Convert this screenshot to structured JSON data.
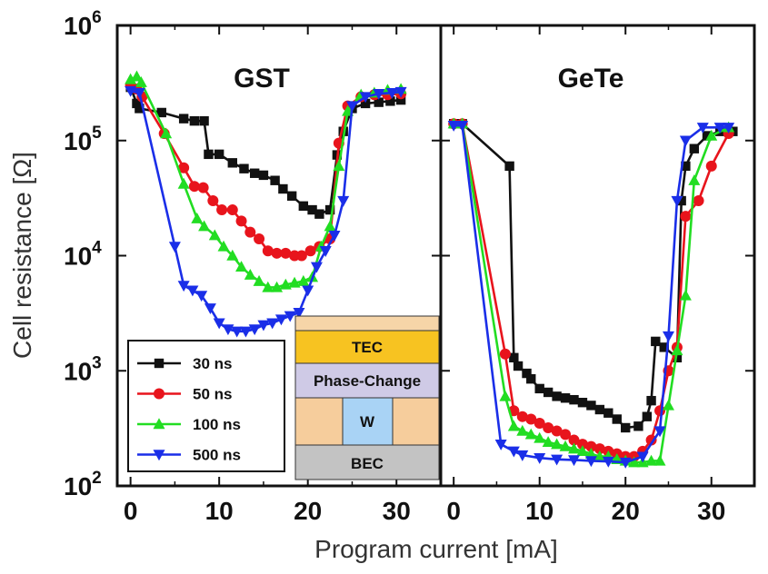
{
  "chart_data": {
    "type": "line",
    "xlabel": "Program current [mA]",
    "ylabel": "Cell resistance [Ω]",
    "yscale": "log",
    "ylim": [
      100,
      1000000
    ],
    "y_ticks": [
      {
        "value": 100,
        "mantissa": "10",
        "exp": "2"
      },
      {
        "value": 1000,
        "mantissa": "10",
        "exp": "3"
      },
      {
        "value": 10000,
        "mantissa": "10",
        "exp": "4"
      },
      {
        "value": 100000,
        "mantissa": "10",
        "exp": "5"
      },
      {
        "value": 1000000,
        "mantissa": "10",
        "exp": "6"
      }
    ],
    "x_ticks": [
      "0",
      "10",
      "20",
      "30"
    ],
    "grid": false,
    "legend_position": "lower-left of left panel",
    "series_styles": [
      {
        "name": "30 ns",
        "color": "#111111",
        "marker": "square"
      },
      {
        "name": "50 ns",
        "color": "#e8141c",
        "marker": "circle"
      },
      {
        "name": "100 ns",
        "color": "#22dd22",
        "marker": "triangle-up"
      },
      {
        "name": "500 ns",
        "color": "#1a2ee8",
        "marker": "triangle-down"
      }
    ],
    "panels": [
      {
        "title": "GST",
        "xlim": [
          -1.5,
          35
        ],
        "series": [
          {
            "name": "30 ns",
            "x": [
              0,
              0.7,
              1,
              3.5,
              6,
              7.2,
              8.3,
              8.8,
              10,
              11.5,
              12.8,
              14,
              15,
              16.3,
              17.2,
              18.2,
              19.5,
              20.5,
              21.3,
              22.5,
              23.3,
              24,
              25,
              26.5,
              28,
              29.3,
              30.5
            ],
            "y": [
              290000,
              210000,
              190000,
              175000,
              155000,
              148000,
              148000,
              76000,
              76000,
              64000,
              57000,
              52000,
              50000,
              45000,
              38000,
              33000,
              27000,
              25000,
              23000,
              25000,
              75000,
              120000,
              190000,
              210000,
              215000,
              220000,
              225000
            ]
          },
          {
            "name": "50 ns",
            "x": [
              0,
              0.7,
              1.3,
              3.8,
              6,
              7.2,
              8.2,
              9.3,
              10.3,
              11.5,
              12.5,
              13.5,
              14.5,
              15.5,
              16.5,
              17.5,
              18.5,
              19.3,
              20.3,
              21.3,
              22.5,
              23.5,
              24.5,
              26,
              27.5,
              29,
              30.5
            ],
            "y": [
              300000,
              280000,
              240000,
              115000,
              58000,
              40000,
              39000,
              30000,
              25000,
              25000,
              20000,
              16000,
              14000,
              11000,
              10500,
              10500,
              10000,
              10000,
              11000,
              12000,
              14000,
              95000,
              200000,
              240000,
              250000,
              250000,
              255000
            ]
          },
          {
            "name": "100 ns",
            "x": [
              0,
              0.7,
              1.2,
              4,
              6,
              7.5,
              8.3,
              9.5,
              10.5,
              11.5,
              12.5,
              13.5,
              14.5,
              15.5,
              16.5,
              17.5,
              18.5,
              19.5,
              20.5,
              21.5,
              22.5,
              23.5,
              24.5,
              26,
              27.5,
              29,
              30.5
            ],
            "y": [
              340000,
              360000,
              320000,
              115000,
              42000,
              21000,
              18000,
              15000,
              12000,
              10000,
              8000,
              6800,
              6000,
              5300,
              5300,
              5600,
              5800,
              6000,
              6500,
              12000,
              18000,
              60000,
              180000,
              250000,
              260000,
              275000,
              280000
            ]
          },
          {
            "name": "500 ns",
            "x": [
              0,
              1,
              5,
              6,
              7,
              8,
              9,
              10,
              11,
              12,
              13,
              14,
              15,
              16,
              17,
              18,
              19,
              20,
              21,
              22,
              23,
              24,
              25,
              26.5,
              28,
              29.5,
              30.5
            ],
            "y": [
              270000,
              260000,
              12000,
              5500,
              5000,
              4500,
              3500,
              2600,
              2300,
              2200,
              2200,
              2300,
              2500,
              2600,
              2800,
              3000,
              3200,
              5000,
              8000,
              11000,
              15000,
              30000,
              200000,
              240000,
              255000,
              260000,
              265000
            ]
          }
        ]
      },
      {
        "title": "GeTe",
        "xlim": [
          -1.5,
          35
        ],
        "series": [
          {
            "name": "30 ns",
            "x": [
              0,
              1,
              6.5,
              7,
              7.5,
              8.5,
              9,
              10,
              11,
              12,
              13,
              14,
              15,
              16,
              17,
              18,
              19,
              20,
              21.5,
              22.5,
              23,
              23.5,
              24.5,
              26,
              26.5,
              27,
              28,
              29.5,
              31,
              32.5
            ],
            "y": [
              140000,
              140000,
              60000,
              1300,
              1100,
              950,
              850,
              700,
              650,
              600,
              580,
              560,
              530,
              500,
              460,
              430,
              380,
              320,
              330,
              400,
              550,
              1800,
              1600,
              1300,
              30000,
              60000,
              85000,
              110000,
              120000,
              120000
            ]
          },
          {
            "name": "50 ns",
            "x": [
              0,
              1,
              6,
              7,
              8,
              9,
              10,
              11,
              12,
              13,
              14,
              15,
              16,
              17,
              18,
              19,
              20,
              21,
              22,
              23,
              24,
              25,
              26,
              27,
              28.5,
              30,
              32
            ],
            "y": [
              140000,
              140000,
              1400,
              450,
              400,
              380,
              350,
              320,
              300,
              280,
              250,
              230,
              220,
              210,
              200,
              190,
              180,
              180,
              200,
              250,
              450,
              1000,
              1600,
              22000,
              30000,
              60000,
              115000
            ]
          },
          {
            "name": "100 ns",
            "x": [
              0,
              1,
              6,
              7,
              8,
              9,
              10,
              11,
              12,
              13,
              14,
              15,
              16,
              17,
              18,
              19,
              20,
              21,
              22,
              23,
              24,
              25,
              26,
              27,
              28,
              30,
              32
            ],
            "y": [
              140000,
              140000,
              600,
              330,
              300,
              280,
              260,
              240,
              230,
              220,
              210,
              200,
              190,
              180,
              180,
              170,
              165,
              160,
              160,
              165,
              165,
              500,
              1500,
              4500,
              45000,
              110000,
              130000
            ]
          },
          {
            "name": "500 ns",
            "x": [
              0,
              1,
              5.5,
              7,
              8,
              10,
              12,
              14,
              16,
              18,
              20,
              22,
              24,
              25,
              26,
              27,
              29,
              31,
              32
            ],
            "y": [
              135000,
              135000,
              230,
              200,
              185,
              175,
              170,
              168,
              165,
              163,
              160,
              180,
              300,
              2000,
              30000,
              100000,
              130000,
              130000,
              130000
            ]
          }
        ]
      }
    ]
  },
  "inset": {
    "layers": [
      "TEC",
      "Phase-Change",
      "W",
      "BEC"
    ],
    "colors": {
      "top_strip": "#f6d5a8",
      "tec": "#f7c321",
      "phase_change": "#cfcae6",
      "oxide": "#f6cd9c",
      "w_plug": "#a9d3f5",
      "bec": "#c3c3c3"
    }
  }
}
